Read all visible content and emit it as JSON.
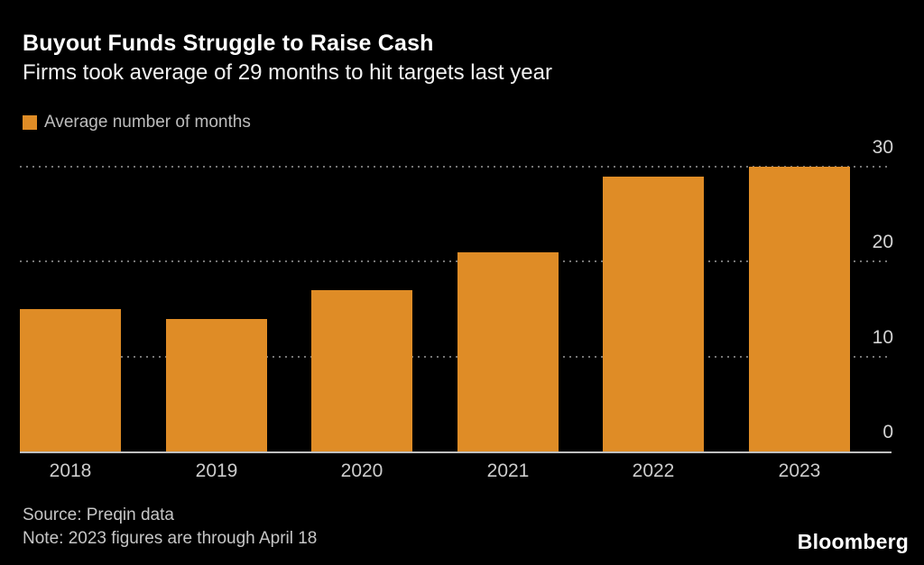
{
  "chart_data": {
    "type": "bar",
    "title": "Buyout Funds Struggle to Raise Cash",
    "subtitle": "Firms took average of 29 months to hit targets last year",
    "legend": "Average number of months",
    "categories": [
      "2018",
      "2019",
      "2020",
      "2021",
      "2022",
      "2023"
    ],
    "values": [
      15,
      14,
      17,
      21,
      29,
      30
    ],
    "xlabel": "",
    "ylabel": "",
    "ylim": [
      0,
      30
    ],
    "yticks": [
      0,
      10,
      20,
      30
    ],
    "axis_side": "right",
    "grid": "horizontal-dotted",
    "legend_position": "top-left",
    "bar_color": "#DF8C26",
    "background_color": "#000000"
  },
  "footer": {
    "source": "Source: Preqin data",
    "note": "Note: 2023 figures are through April 18",
    "brand": "Bloomberg"
  }
}
